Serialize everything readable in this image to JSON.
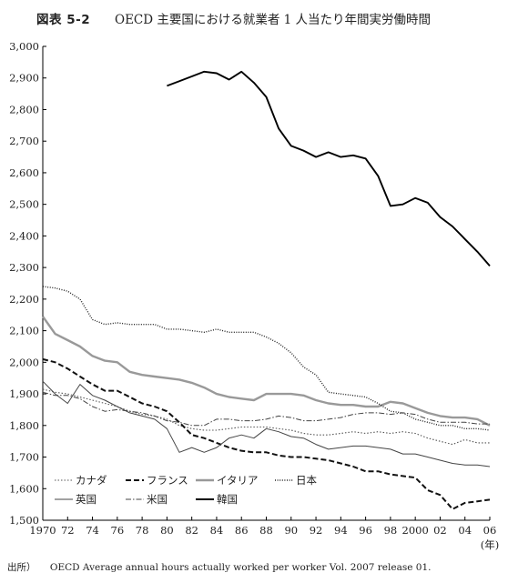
{
  "figure_label": "図表 5-2",
  "title_text": "OECD 主要国における就業者 1 人当たり年間実労働時間",
  "source_label": "出所）",
  "source_text": "OECD Average annual hours actually worked per worker Vol. 2007 release 01.",
  "chart_data": {
    "type": "line",
    "title": "図表 5-2 OECD 主要国における就業者 1 人当たり年間実労働時間",
    "xlabel": "(年)",
    "ylabel": "",
    "xlim": [
      1970,
      2006
    ],
    "ylim": [
      1500,
      3000
    ],
    "grid": false,
    "legend_position": "bottom-left",
    "y_ticks": [
      "1,500",
      "1,600",
      "1,700",
      "1,800",
      "1,900",
      "2,000",
      "2,100",
      "2,200",
      "2,300",
      "2,400",
      "2,500",
      "2,600",
      "2,700",
      "2,800",
      "2,900",
      "3,000"
    ],
    "x_ticks": [
      "1970",
      "72",
      "74",
      "76",
      "78",
      "80",
      "82",
      "84",
      "86",
      "88",
      "90",
      "92",
      "94",
      "96",
      "98",
      "2000",
      "02",
      "04",
      "06"
    ],
    "series": [
      {
        "name": "カナダ",
        "style": "dotted",
        "color": "#555555",
        "x": [
          1970,
          1971,
          1972,
          1973,
          1974,
          1975,
          1976,
          1977,
          1978,
          1979,
          1980,
          1981,
          1982,
          1983,
          1984,
          1985,
          1986,
          1987,
          1988,
          1989,
          1990,
          1991,
          1992,
          1993,
          1994,
          1995,
          1996,
          1997,
          1998,
          1999,
          2000,
          2001,
          2002,
          2003,
          2004,
          2005,
          2006
        ],
        "y": [
          1915,
          1905,
          1900,
          1890,
          1880,
          1870,
          1860,
          1845,
          1835,
          1830,
          1820,
          1800,
          1790,
          1785,
          1785,
          1790,
          1795,
          1795,
          1795,
          1790,
          1785,
          1775,
          1770,
          1770,
          1775,
          1780,
          1775,
          1780,
          1775,
          1780,
          1775,
          1760,
          1750,
          1740,
          1755,
          1745,
          1745
        ]
      },
      {
        "name": "フランス",
        "style": "dashed-bold",
        "color": "#111111",
        "x": [
          1970,
          1971,
          1972,
          1973,
          1974,
          1975,
          1976,
          1977,
          1978,
          1979,
          1980,
          1981,
          1982,
          1983,
          1984,
          1985,
          1986,
          1987,
          1988,
          1989,
          1990,
          1991,
          1992,
          1993,
          1994,
          1995,
          1996,
          1997,
          1998,
          1999,
          2000,
          2001,
          2002,
          2003,
          2004,
          2005,
          2006
        ],
        "y": [
          2010,
          2000,
          1980,
          1955,
          1930,
          1910,
          1910,
          1890,
          1870,
          1860,
          1845,
          1810,
          1770,
          1760,
          1745,
          1730,
          1720,
          1715,
          1715,
          1705,
          1700,
          1700,
          1695,
          1690,
          1680,
          1670,
          1655,
          1655,
          1645,
          1640,
          1635,
          1595,
          1580,
          1535,
          1555,
          1560,
          1565
        ]
      },
      {
        "name": "イタリア",
        "style": "solid-thick",
        "color": "#999999",
        "x": [
          1970,
          1971,
          1972,
          1973,
          1974,
          1975,
          1976,
          1977,
          1978,
          1979,
          1980,
          1981,
          1982,
          1983,
          1984,
          1985,
          1986,
          1987,
          1988,
          1989,
          1990,
          1991,
          1992,
          1993,
          1994,
          1995,
          1996,
          1997,
          1998,
          1999,
          2000,
          2001,
          2002,
          2003,
          2004,
          2005,
          2006
        ],
        "y": [
          2145,
          2090,
          2070,
          2050,
          2020,
          2005,
          2000,
          1970,
          1960,
          1955,
          1950,
          1945,
          1935,
          1920,
          1900,
          1890,
          1885,
          1880,
          1900,
          1900,
          1900,
          1895,
          1880,
          1870,
          1865,
          1865,
          1860,
          1860,
          1875,
          1870,
          1855,
          1840,
          1830,
          1825,
          1825,
          1820,
          1800
        ]
      },
      {
        "name": "日本",
        "style": "dotted-dense",
        "color": "#222222",
        "x": [
          1970,
          1971,
          1972,
          1973,
          1974,
          1975,
          1976,
          1977,
          1978,
          1979,
          1980,
          1981,
          1982,
          1983,
          1984,
          1985,
          1986,
          1987,
          1988,
          1989,
          1990,
          1991,
          1992,
          1993,
          1994,
          1995,
          1996,
          1997,
          1998,
          1999,
          2000,
          2001,
          2002,
          2003,
          2004,
          2005,
          2006
        ],
        "y": [
          2240,
          2235,
          2225,
          2200,
          2135,
          2120,
          2125,
          2120,
          2120,
          2120,
          2105,
          2105,
          2100,
          2095,
          2105,
          2095,
          2095,
          2095,
          2080,
          2060,
          2030,
          1985,
          1960,
          1905,
          1900,
          1895,
          1890,
          1870,
          1845,
          1840,
          1820,
          1810,
          1800,
          1800,
          1790,
          1790,
          1785
        ]
      },
      {
        "name": "英国",
        "style": "solid-thin",
        "color": "#444444",
        "x": [
          1970,
          1971,
          1972,
          1973,
          1974,
          1975,
          1976,
          1977,
          1978,
          1979,
          1980,
          1981,
          1982,
          1983,
          1984,
          1985,
          1986,
          1987,
          1988,
          1989,
          1990,
          1991,
          1992,
          1993,
          1994,
          1995,
          1996,
          1997,
          1998,
          1999,
          2000,
          2001,
          2002,
          2003,
          2004,
          2005,
          2006
        ],
        "y": [
          1940,
          1900,
          1870,
          1930,
          1895,
          1880,
          1860,
          1840,
          1830,
          1820,
          1790,
          1715,
          1730,
          1715,
          1730,
          1760,
          1770,
          1760,
          1790,
          1780,
          1765,
          1760,
          1740,
          1725,
          1730,
          1735,
          1735,
          1730,
          1725,
          1710,
          1710,
          1700,
          1690,
          1680,
          1675,
          1675,
          1670
        ]
      },
      {
        "name": "米国",
        "style": "dash-dot",
        "color": "#444444",
        "x": [
          1970,
          1971,
          1972,
          1973,
          1974,
          1975,
          1976,
          1977,
          1978,
          1979,
          1980,
          1981,
          1982,
          1983,
          1984,
          1985,
          1986,
          1987,
          1988,
          1989,
          1990,
          1991,
          1992,
          1993,
          1994,
          1995,
          1996,
          1997,
          1998,
          1999,
          2000,
          2001,
          2002,
          2003,
          2004,
          2005,
          2006
        ],
        "y": [
          1905,
          1895,
          1895,
          1885,
          1860,
          1845,
          1850,
          1845,
          1840,
          1830,
          1815,
          1810,
          1800,
          1800,
          1820,
          1820,
          1815,
          1815,
          1820,
          1830,
          1825,
          1815,
          1815,
          1820,
          1825,
          1835,
          1840,
          1840,
          1835,
          1840,
          1835,
          1820,
          1810,
          1810,
          1810,
          1805,
          1805
        ]
      },
      {
        "name": "韓国",
        "style": "solid-bold",
        "color": "#000000",
        "x": [
          1980,
          1981,
          1982,
          1983,
          1984,
          1985,
          1986,
          1987,
          1988,
          1989,
          1990,
          1991,
          1992,
          1993,
          1994,
          1995,
          1996,
          1997,
          1998,
          1999,
          2000,
          2001,
          2002,
          2003,
          2004,
          2005,
          2006
        ],
        "y": [
          2875,
          2890,
          2905,
          2920,
          2915,
          2895,
          2920,
          2885,
          2840,
          2740,
          2685,
          2670,
          2650,
          2665,
          2650,
          2655,
          2645,
          2590,
          2495,
          2500,
          2520,
          2505,
          2460,
          2430,
          2390,
          2350,
          2305
        ]
      }
    ]
  }
}
